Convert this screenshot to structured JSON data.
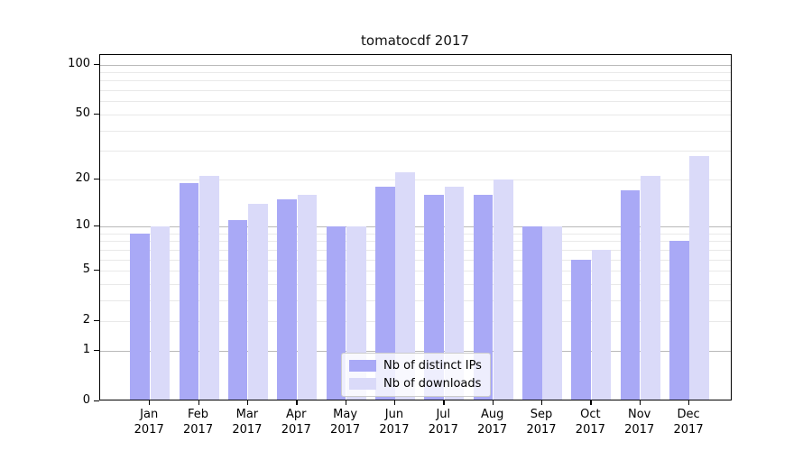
{
  "chart_data": {
    "type": "bar",
    "title": "tomatocdf 2017",
    "categories": [
      "Jan 2017",
      "Feb 2017",
      "Mar 2017",
      "Apr 2017",
      "May 2017",
      "Jun 2017",
      "Jul 2017",
      "Aug 2017",
      "Sep 2017",
      "Oct 2017",
      "Nov 2017",
      "Dec 2017"
    ],
    "series": [
      {
        "name": "Nb of distinct IPs",
        "color": "#a9a9f6",
        "values": [
          9,
          19,
          11,
          15,
          10,
          18,
          16,
          16,
          10,
          6,
          17,
          8
        ]
      },
      {
        "name": "Nb of downloads",
        "color": "#dadaf9",
        "values": [
          10,
          21,
          14,
          16,
          10,
          22,
          18,
          20,
          10,
          7,
          21,
          28
        ]
      }
    ],
    "xlabel": "",
    "ylabel": "",
    "y_axis": {
      "scale": "log1p",
      "ticks_labeled": [
        0,
        1,
        2,
        5,
        10,
        20,
        50,
        100
      ],
      "major_gridlines": [
        1,
        10,
        100
      ],
      "minor_gridlines": [
        2,
        3,
        4,
        5,
        6,
        7,
        8,
        9,
        20,
        30,
        40,
        50,
        60,
        70,
        80,
        90
      ],
      "top_value": 114
    },
    "grid": "on",
    "legend_position": "lower-center-inside",
    "colors": {
      "major_grid": "#b9b9b9",
      "minor_grid": "#e9e9e9",
      "axis": "#000000",
      "background": "#ffffff"
    }
  }
}
